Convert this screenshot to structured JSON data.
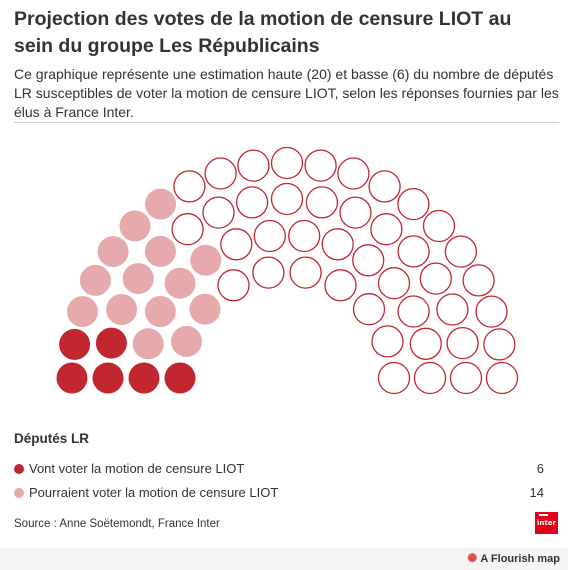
{
  "header": {
    "title": "Projection des votes de la motion de censure LIOT au sein du groupe Les Républicains",
    "subtitle": "Ce graphique représente une estimation haute (20) et basse (6) du nombre de députés LR susceptibles de voter la motion de censure LIOT, selon les réponses fournies par les élus à France Inter."
  },
  "chart_data": {
    "type": "parliament",
    "total_seats": 62,
    "legend_title": "Députés LR",
    "series": [
      {
        "name": "Vont voter la motion de censure LIOT",
        "value": 6,
        "color": "#c2262f"
      },
      {
        "name": "Pourraient voter la motion de censure LIOT",
        "value": 14,
        "color": "#e6aaac"
      }
    ],
    "remaining_seats": 42,
    "remaining_style": {
      "fill": "#ffffff",
      "stroke": "#c2262f"
    },
    "legend_placement": "bottom"
  },
  "legend": {
    "title": "Députés LR",
    "items": [
      {
        "label": "Vont voter la motion de censure LIOT",
        "count": "6",
        "color": "#c2262f"
      },
      {
        "label": "Pourraient voter la motion de censure LIOT",
        "count": "14",
        "color": "#e6aaac"
      }
    ]
  },
  "footer": {
    "source": "Source : Anne Soëtemondt, France Inter",
    "logo_text": "inter",
    "logo_icon": "france-inter-logo",
    "credit": "A Flourish map",
    "credit_icon": "flourish-icon"
  },
  "colors": {
    "firm": "#c2262f",
    "maybe": "#e6aaac",
    "rest_stroke": "#c2262f",
    "rule": "#cccccc"
  }
}
